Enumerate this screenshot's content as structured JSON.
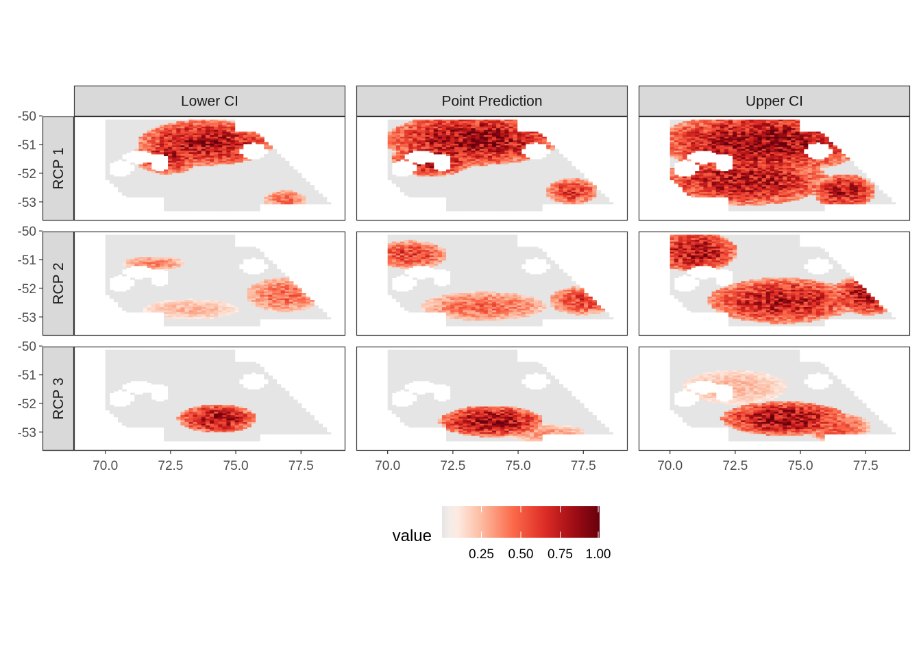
{
  "chart_data": {
    "type": "heatmap",
    "title": "",
    "xlabel": "",
    "ylabel": "",
    "facet_columns": [
      "Lower CI",
      "Point Prediction",
      "Upper CI"
    ],
    "facet_rows": [
      "RCP 1",
      "RCP 2",
      "RCP 3"
    ],
    "x_ticks": [
      70.0,
      72.5,
      75.0,
      77.5
    ],
    "x_tick_labels": [
      "70.0",
      "72.5",
      "75.0",
      "77.5"
    ],
    "y_ticks": [
      -50,
      -51,
      -52,
      -53
    ],
    "y_tick_labels": [
      "-50",
      "-51",
      "-52",
      "-53"
    ],
    "xlim": [
      68.8,
      79.2
    ],
    "ylim": [
      -53.65,
      -50.02
    ],
    "grid": false,
    "legend": {
      "title": "value",
      "position": "bottom",
      "range": [
        0,
        1
      ],
      "ticks": [
        0.25,
        0.5,
        0.75,
        1.0
      ],
      "tick_labels": [
        "0.25",
        "0.50",
        "0.75",
        "1.00"
      ],
      "palette": [
        "#e5e5e5",
        "#fee0d2",
        "#fc9272",
        "#ef3b2c",
        "#cb181d",
        "#67000d"
      ]
    },
    "hotspot_regions_estimated": [
      [
        [
          [
            73.8,
            -50.9,
            2.6,
            0.8,
            0.95
          ],
          [
            76.8,
            -52.9,
            0.8,
            0.35,
            0.55
          ],
          [
            72.3,
            -51.4,
            1.3,
            0.6,
            0.85
          ]
        ],
        [
          [
            73.2,
            -50.8,
            3.4,
            0.9,
            1.0
          ],
          [
            77.0,
            -52.6,
            1.0,
            0.45,
            0.75
          ],
          [
            71.6,
            -51.5,
            1.6,
            0.6,
            0.95
          ]
        ],
        [
          [
            73.5,
            -50.9,
            4.0,
            1.1,
            1.0
          ],
          [
            72.8,
            -52.2,
            3.2,
            0.9,
            0.95
          ],
          [
            76.6,
            -52.6,
            1.2,
            0.6,
            0.9
          ]
        ]
      ],
      [
        [
          [
            76.8,
            -52.2,
            1.5,
            0.6,
            0.55
          ],
          [
            71.8,
            -51.1,
            1.2,
            0.25,
            0.45
          ],
          [
            73.2,
            -52.7,
            1.8,
            0.35,
            0.3
          ]
        ],
        [
          [
            70.8,
            -50.8,
            1.4,
            0.5,
            0.7
          ],
          [
            73.6,
            -52.6,
            2.4,
            0.5,
            0.55
          ],
          [
            77.4,
            -52.4,
            1.3,
            0.5,
            0.7
          ]
        ],
        [
          [
            70.9,
            -50.7,
            1.6,
            0.7,
            0.95
          ],
          [
            74.2,
            -52.4,
            2.8,
            0.8,
            0.9
          ],
          [
            77.5,
            -52.2,
            1.4,
            0.7,
            0.9
          ]
        ]
      ],
      [
        [
          [
            74.2,
            -52.5,
            1.5,
            0.5,
            0.95
          ]
        ],
        [
          [
            73.9,
            -52.6,
            2.0,
            0.55,
            1.0
          ],
          [
            75.9,
            -53.0,
            1.6,
            0.3,
            0.4
          ]
        ],
        [
          [
            74.3,
            -52.5,
            2.4,
            0.6,
            1.0
          ],
          [
            76.3,
            -52.8,
            1.3,
            0.5,
            0.6
          ],
          [
            72.4,
            -51.4,
            2.0,
            0.6,
            0.3
          ]
        ]
      ]
    ]
  }
}
